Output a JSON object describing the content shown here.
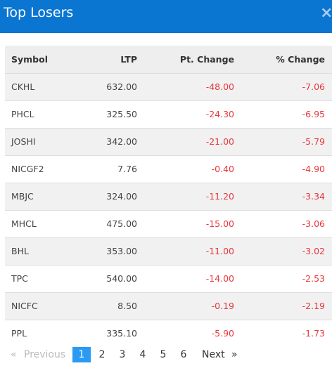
{
  "header": {
    "title": "Top Losers",
    "close_label": "×"
  },
  "table": {
    "columns": [
      "Symbol",
      "LTP",
      "Pt. Change",
      "% Change"
    ],
    "rows": [
      [
        "CKHL",
        "632.00",
        "-48.00",
        "-7.06"
      ],
      [
        "PHCL",
        "325.50",
        "-24.30",
        "-6.95"
      ],
      [
        "JOSHI",
        "342.00",
        "-21.00",
        "-5.79"
      ],
      [
        "NICGF2",
        "7.76",
        "-0.40",
        "-4.90"
      ],
      [
        "MBJC",
        "324.00",
        "-11.20",
        "-3.34"
      ],
      [
        "MHCL",
        "475.00",
        "-15.00",
        "-3.06"
      ],
      [
        "BHL",
        "353.00",
        "-11.00",
        "-3.02"
      ],
      [
        "TPC",
        "540.00",
        "-14.00",
        "-2.53"
      ],
      [
        "NICFC",
        "8.50",
        "-0.19",
        "-2.19"
      ],
      [
        "PPL",
        "335.10",
        "-5.90",
        "-1.73"
      ]
    ]
  },
  "pagination": {
    "prev_arrow": "«",
    "prev_label": "Previous",
    "pages": [
      "1",
      "2",
      "3",
      "4",
      "5",
      "6"
    ],
    "current": "1",
    "next_label": "Next",
    "next_arrow": "»"
  },
  "colors": {
    "header_bg": "#0a76d1",
    "negative": "#e8383d",
    "active_page": "#2a9af2"
  }
}
